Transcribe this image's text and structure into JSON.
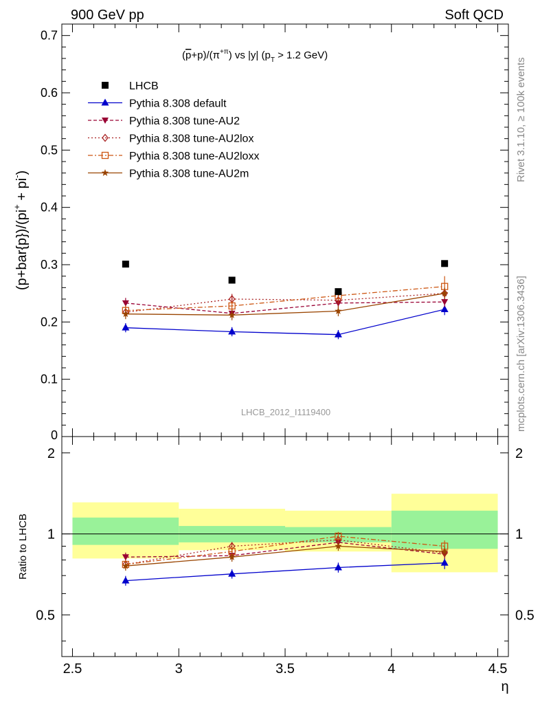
{
  "header": {
    "left": "900 GeV pp",
    "right": "Soft QCD"
  },
  "side": {
    "rivet": "Rivet 3.1.10, ≥ 100k events",
    "mcplots": "mcplots.cern.ch [arXiv:1306.3436]"
  },
  "colors": {
    "LHCB": "#000000",
    "Pythia 8.308 default": "#0000cc",
    "Pythia 8.308 tune-AU2": "#990033",
    "Pythia 8.308 tune-AU2lox": "#aa2222",
    "Pythia 8.308 tune-AU2loxx": "#cc5511",
    "Pythia 8.308 tune-AU2m": "#994400",
    "band_inner": "#99f299",
    "band_outer": "#ffff99"
  },
  "chart_data": [
    {
      "type": "scatter",
      "panel": "main",
      "title": "(p̄+p)/(π⁻+π⁺) vs |y| (p_T > 1.2 GeV)",
      "title_parts": {
        "a": "(",
        "b": "p",
        "c": "+p)/(π",
        "d": "+π",
        "e": ") vs |y| (p",
        "f": " > 1.2 GeV)"
      },
      "ylabel": "(p+bar{p})/(pi+ + pi-)",
      "ylabel_parts": {
        "a": "(p+bar{p})/(pi",
        "b": "+",
        "c": " + pi",
        "d": "-",
        "e": ")"
      },
      "watermark": "LHCB_2012_I1119400",
      "xlim": [
        2.45,
        4.55
      ],
      "ylim": [
        0.0,
        0.72
      ],
      "yticks": [
        0.1,
        0.2,
        0.3,
        0.4,
        0.5,
        0.6,
        0.7
      ],
      "ytick_labels": [
        "0.1",
        "0.2",
        "0.3",
        "0.4",
        "0.5",
        "0.6",
        "0.7"
      ],
      "y_bottom_label": "0",
      "x": [
        2.75,
        3.25,
        3.75,
        4.25
      ],
      "legend_location": "upper-left",
      "series": [
        {
          "name": "LHCB",
          "marker": "square",
          "line": "none",
          "values": [
            0.301,
            0.273,
            0.253,
            0.302
          ],
          "errors": [
            0.004,
            0.004,
            0.004,
            0.004
          ]
        },
        {
          "name": "Pythia 8.308 default",
          "marker": "triangle-up",
          "line": "solid",
          "values": [
            0.19,
            0.183,
            0.178,
            0.222
          ],
          "errors": [
            0.008,
            0.008,
            0.008,
            0.01
          ]
        },
        {
          "name": "Pythia 8.308 tune-AU2",
          "marker": "triangle-down",
          "line": "dash",
          "values": [
            0.233,
            0.215,
            0.233,
            0.235
          ],
          "errors": [
            0.009,
            0.009,
            0.009,
            0.009
          ]
        },
        {
          "name": "Pythia 8.308 tune-AU2lox",
          "marker": "diamond-open",
          "line": "dot",
          "values": [
            0.217,
            0.24,
            0.238,
            0.25
          ],
          "errors": [
            0.008,
            0.009,
            0.009,
            0.01
          ]
        },
        {
          "name": "Pythia 8.308 tune-AU2loxx",
          "marker": "square-open",
          "line": "dashdot",
          "values": [
            0.22,
            0.228,
            0.246,
            0.262
          ],
          "errors": [
            0.009,
            0.009,
            0.01,
            0.018
          ]
        },
        {
          "name": "Pythia 8.308 tune-AU2m",
          "marker": "star",
          "line": "solid",
          "values": [
            0.214,
            0.212,
            0.219,
            0.25
          ],
          "errors": [
            0.009,
            0.009,
            0.009,
            0.01
          ]
        }
      ]
    },
    {
      "type": "scatter",
      "panel": "ratio",
      "ylabel": "Ratio to LHCB",
      "xlabel": "η",
      "xlim": [
        2.45,
        4.55
      ],
      "ylim": [
        0.35,
        2.3
      ],
      "yticks": [
        0.5,
        1,
        2
      ],
      "ytick_labels": [
        "0.5",
        "1",
        "2"
      ],
      "xticks": [
        2.5,
        3,
        3.5,
        4,
        4.5
      ],
      "xtick_labels": [
        "2.5",
        "3",
        "3.5",
        "4",
        "4.5"
      ],
      "reference_line": 1,
      "x": [
        2.75,
        3.25,
        3.75,
        4.25
      ],
      "bands": [
        {
          "x_range": [
            2.5,
            3.0
          ],
          "inner": [
            0.91,
            1.15
          ],
          "outer": [
            0.81,
            1.31
          ]
        },
        {
          "x_range": [
            3.0,
            3.5
          ],
          "inner": [
            0.93,
            1.07
          ],
          "outer": [
            0.87,
            1.24
          ]
        },
        {
          "x_range": [
            3.5,
            4.0
          ],
          "inner": [
            0.93,
            1.06
          ],
          "outer": [
            0.86,
            1.22
          ]
        },
        {
          "x_range": [
            4.0,
            4.5
          ],
          "inner": [
            0.88,
            1.22
          ],
          "outer": [
            0.72,
            1.41
          ]
        }
      ],
      "series": [
        {
          "name": "Pythia 8.308 default",
          "values": [
            0.67,
            0.71,
            0.75,
            0.78
          ],
          "errors": [
            0.028,
            0.028,
            0.032,
            0.04
          ]
        },
        {
          "name": "Pythia 8.308 tune-AU2",
          "values": [
            0.82,
            0.83,
            0.93,
            0.84
          ],
          "errors": [
            0.032,
            0.032,
            0.034,
            0.032
          ]
        },
        {
          "name": "Pythia 8.308 tune-AU2lox",
          "values": [
            0.77,
            0.9,
            0.95,
            0.85
          ],
          "errors": [
            0.03,
            0.033,
            0.035,
            0.035
          ]
        },
        {
          "name": "Pythia 8.308 tune-AU2loxx",
          "values": [
            0.77,
            0.86,
            0.98,
            0.9
          ],
          "errors": [
            0.032,
            0.034,
            0.037,
            0.045
          ]
        },
        {
          "name": "Pythia 8.308 tune-AU2m",
          "values": [
            0.76,
            0.82,
            0.9,
            0.86
          ],
          "errors": [
            0.03,
            0.032,
            0.035,
            0.035
          ]
        }
      ]
    }
  ]
}
